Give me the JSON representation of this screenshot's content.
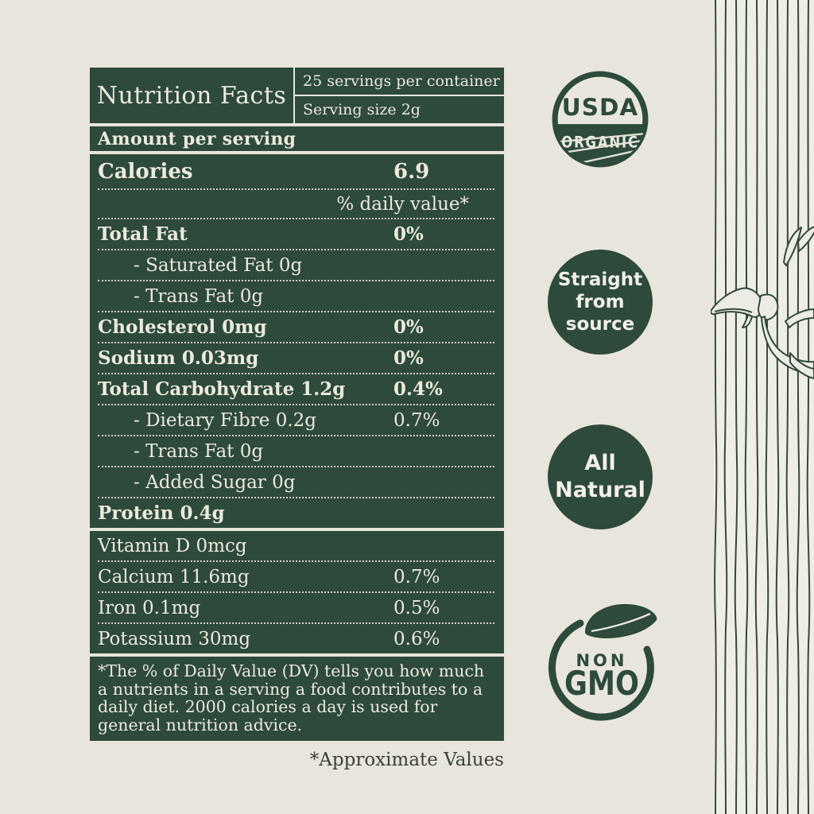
{
  "page": {
    "background": "#e7e5dc",
    "panel_green": "#2d4a3b",
    "cream_text": "#ece9dd",
    "note_text": "#3a4138"
  },
  "label": {
    "title": "Nutrition Facts",
    "servings_per_container": "25 servings per container",
    "serving_size": "Serving size 2g",
    "amount_header": "Amount per serving",
    "main_rows": [
      {
        "label": "Calories",
        "value": "6.9",
        "bold": true,
        "large": true
      },
      {
        "label": "% daily value*",
        "dv_note": true
      },
      {
        "label": "Total Fat",
        "value": "0%",
        "bold": true
      },
      {
        "label": "- Saturated Fat 0g",
        "indent": true
      },
      {
        "label": "- Trans Fat 0g",
        "indent": true
      },
      {
        "label": "Cholesterol 0mg",
        "value": "0%",
        "bold": true
      },
      {
        "label": "Sodium 0.03mg",
        "value": "0%",
        "bold": true
      },
      {
        "label": "Total Carbohydrate 1.2g",
        "value": "0.4%",
        "bold": true
      },
      {
        "label": "- Dietary Fibre 0.2g",
        "value": "0.7%",
        "indent": true
      },
      {
        "label": "- Trans Fat 0g",
        "indent": true
      },
      {
        "label": "- Added Sugar 0g",
        "indent": true
      },
      {
        "label": "Protein 0.4g",
        "bold": true
      }
    ],
    "micro_rows": [
      {
        "label": "Vitamin D 0mcg"
      },
      {
        "label": "Calcium 11.6mg",
        "value": "0.7%"
      },
      {
        "label": "Iron 0.1mg",
        "value": "0.5%"
      },
      {
        "label": "Potassium 30mg",
        "value": "0.6%"
      }
    ],
    "footnote": "*The % of Daily Value (DV) tells you how much a nutrients in a serving a food contributes to a daily diet. 2000 calories a day is used for general nutrition advice.",
    "approx_note": "*Approximate Values"
  },
  "badges": {
    "usda": {
      "line1": "USDA",
      "line2": "ORGANIC"
    },
    "straight_from_source": {
      "text": "Straight\nfrom\nsource"
    },
    "all_natural": {
      "text": "All\nNatural"
    },
    "non_gmo": {
      "line1": "NON",
      "line2": "GMO"
    }
  }
}
